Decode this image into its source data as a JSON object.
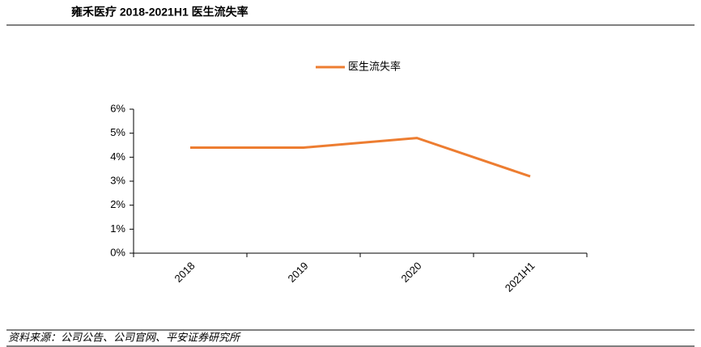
{
  "chart_data": {
    "type": "line",
    "title": "雍禾医疗 2018-2021H1 医生流失率",
    "categories": [
      "2018",
      "2019",
      "2020",
      "2021H1"
    ],
    "series": [
      {
        "name": "医生流失率",
        "color": "#ed7d31",
        "values": [
          4.4,
          4.4,
          4.8,
          3.2
        ]
      }
    ],
    "ylim": [
      0,
      6
    ],
    "yticks": [
      {
        "value": 0,
        "label": "0%"
      },
      {
        "value": 1,
        "label": "1%"
      },
      {
        "value": 2,
        "label": "2%"
      },
      {
        "value": 3,
        "label": "3%"
      },
      {
        "value": 4,
        "label": "4%"
      },
      {
        "value": 5,
        "label": "5%"
      },
      {
        "value": 6,
        "label": "6%"
      }
    ],
    "legend": "top",
    "source": "资料来源：公司公告、公司官网、平安证券研究所"
  }
}
